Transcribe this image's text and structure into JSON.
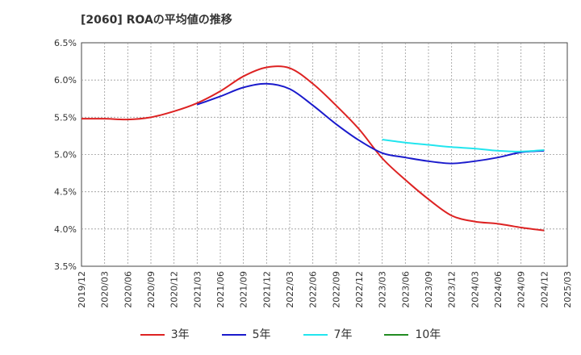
{
  "chart_data": {
    "type": "line",
    "title": "[2060]  ROAの平均値の推移",
    "x_ticks": [
      "2019/12",
      "2020/03",
      "2020/06",
      "2020/09",
      "2020/12",
      "2021/03",
      "2021/06",
      "2021/09",
      "2021/12",
      "2022/03",
      "2022/06",
      "2022/09",
      "2022/12",
      "2023/03",
      "2023/06",
      "2023/09",
      "2023/12",
      "2024/03",
      "2024/06",
      "2024/09",
      "2024/12",
      "2025/03"
    ],
    "y_ticks": [
      "3.5%",
      "4.0%",
      "4.5%",
      "5.0%",
      "5.5%",
      "6.0%",
      "6.5%"
    ],
    "ylim": [
      3.5,
      6.5
    ],
    "y_unit": "%",
    "grid": true,
    "legend_position": "bottom",
    "series": [
      {
        "name": "3年",
        "color": "#dd2222",
        "x": [
          "2019/12",
          "2020/03",
          "2020/06",
          "2020/09",
          "2020/12",
          "2021/03",
          "2021/06",
          "2021/09",
          "2021/12",
          "2022/03",
          "2022/06",
          "2022/09",
          "2022/12",
          "2023/03",
          "2023/06",
          "2023/09",
          "2023/12",
          "2024/03",
          "2024/06",
          "2024/09",
          "2024/12"
        ],
        "values": [
          5.48,
          5.48,
          5.47,
          5.5,
          5.58,
          5.69,
          5.85,
          6.05,
          6.17,
          6.16,
          5.95,
          5.66,
          5.34,
          4.95,
          4.66,
          4.4,
          4.18,
          4.1,
          4.07,
          4.02,
          3.98
        ]
      },
      {
        "name": "5年",
        "color": "#1a1acc",
        "x": [
          "2021/03",
          "2021/06",
          "2021/09",
          "2021/12",
          "2022/03",
          "2022/06",
          "2022/09",
          "2022/12",
          "2023/03",
          "2023/06",
          "2023/09",
          "2023/12",
          "2024/03",
          "2024/06",
          "2024/09",
          "2024/12"
        ],
        "values": [
          5.67,
          5.78,
          5.9,
          5.95,
          5.88,
          5.66,
          5.41,
          5.19,
          5.02,
          4.96,
          4.91,
          4.88,
          4.91,
          4.96,
          5.03,
          5.05
        ]
      },
      {
        "name": "7年",
        "color": "#22e5ee",
        "x": [
          "2023/03",
          "2023/06",
          "2023/09",
          "2023/12",
          "2024/03",
          "2024/06",
          "2024/09",
          "2024/12"
        ],
        "values": [
          5.2,
          5.16,
          5.13,
          5.1,
          5.08,
          5.05,
          5.04,
          5.06
        ]
      },
      {
        "name": "10年",
        "color": "#228b22",
        "x": [],
        "values": []
      }
    ]
  }
}
